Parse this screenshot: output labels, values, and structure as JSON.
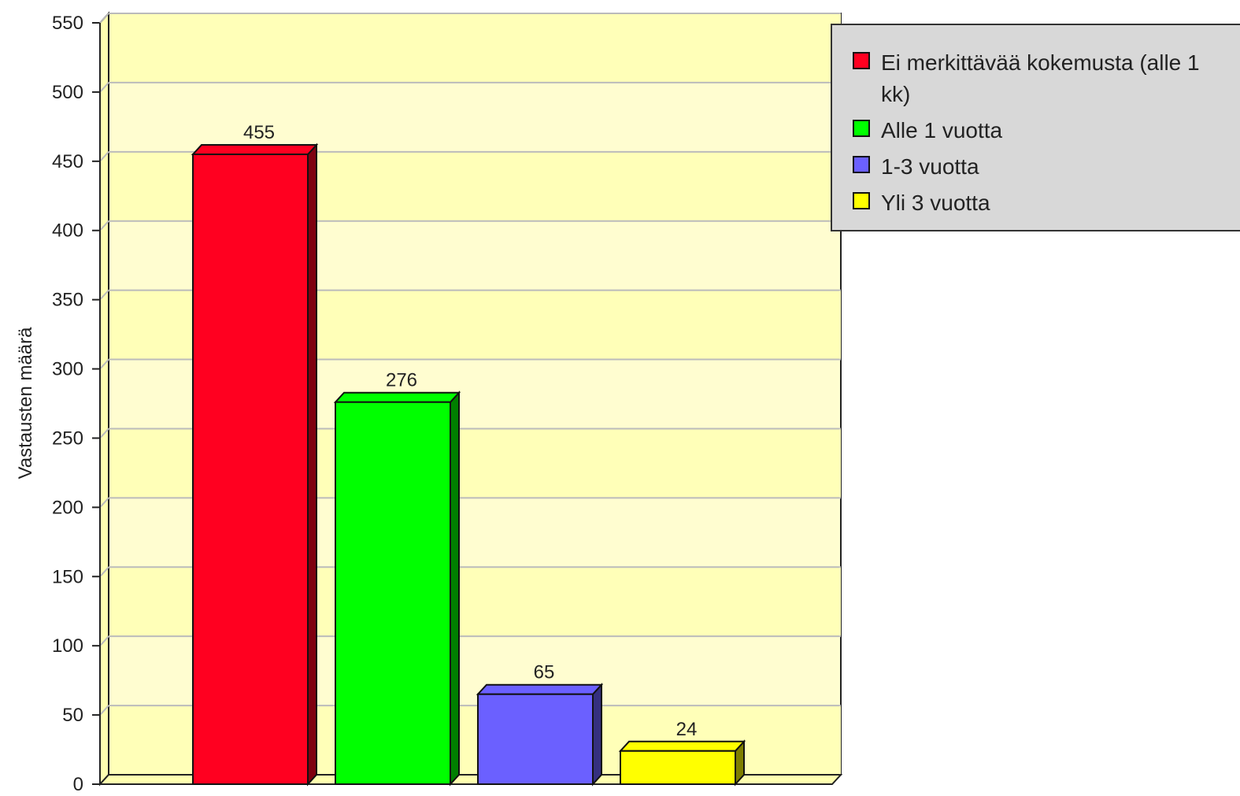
{
  "chart_data": {
    "type": "bar3d",
    "ylabel": "Vastausten määrä",
    "categories": [
      "Ei merkittävää kokemusta (alle 1 kk)",
      "Alle 1 vuotta",
      "1-3 vuotta",
      "Yli 3 vuotta"
    ],
    "values": [
      455,
      276,
      65,
      24
    ],
    "colors": [
      "#ff0020",
      "#00ff00",
      "#6b60ff",
      "#ffff00"
    ],
    "ylim": [
      0,
      550
    ],
    "yticks": [
      0,
      50,
      100,
      150,
      200,
      250,
      300,
      350,
      400,
      450,
      500,
      550
    ],
    "grid": true,
    "legend": "right"
  }
}
